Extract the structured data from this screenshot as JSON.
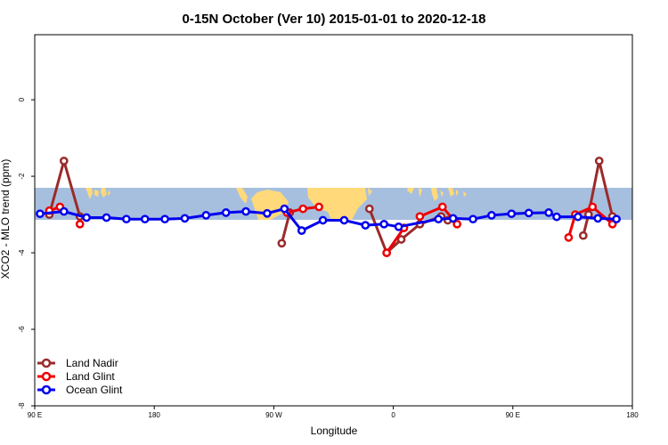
{
  "chart_data": {
    "type": "line",
    "title": "0-15N October (Ver 10)   2015-01-01 to 2020-12-18",
    "xlabel": "Longitude",
    "ylabel": "XCO2 - MLO trend (ppm)",
    "xlim": [
      90,
      540
    ],
    "ylim": [
      -8.0,
      1.7
    ],
    "x_ticks": [
      {
        "value": 90,
        "label": "90 E"
      },
      {
        "value": 180,
        "label": "180"
      },
      {
        "value": 270,
        "label": "90 W"
      },
      {
        "value": 360,
        "label": "0"
      },
      {
        "value": 450,
        "label": "90 E"
      },
      {
        "value": 540,
        "label": "180"
      }
    ],
    "y_ticks": [
      {
        "value": 0,
        "label": "0"
      },
      {
        "value": -2,
        "label": "-2"
      },
      {
        "value": -4,
        "label": "-4"
      },
      {
        "value": -6,
        "label": "-6"
      },
      {
        "value": -8,
        "label": "-8"
      }
    ],
    "map_band": {
      "lon_min": 90,
      "lon_max": 540,
      "ocean_color": "#a7bfde",
      "land_color": "#ffd97a"
    },
    "legend_position": "bottom-left",
    "series": [
      {
        "name": "Land Nadir",
        "color": "#9b2a2a",
        "segments": [
          [
            [
              101,
              -3.0
            ],
            [
              112,
              -1.6
            ],
            [
              124,
              -3.05
            ]
          ],
          [
            [
              276,
              -3.75
            ],
            [
              282,
              -2.95
            ]
          ],
          [
            [
              342,
              -2.85
            ],
            [
              355,
              -4.0
            ],
            [
              366,
              -3.65
            ],
            [
              380,
              -3.25
            ],
            [
              396,
              -3.05
            ],
            [
              401,
              -3.15
            ]
          ],
          [
            [
              503,
              -3.55
            ],
            [
              507,
              -3.0
            ],
            [
              515,
              -1.6
            ],
            [
              525,
              -3.05
            ]
          ]
        ]
      },
      {
        "name": "Land Glint",
        "color": "#ee0000",
        "segments": [
          [
            [
              101,
              -2.9
            ],
            [
              109,
              -2.8
            ]
          ],
          [
            [
              124,
              -3.25
            ]
          ],
          [
            [
              280,
              -2.95
            ],
            [
              292,
              -2.85
            ],
            [
              304,
              -2.8
            ]
          ],
          [
            [
              355,
              -4.0
            ],
            [
              368,
              -3.35
            ]
          ],
          [
            [
              380,
              -3.05
            ],
            [
              397,
              -2.8
            ],
            [
              408,
              -3.25
            ]
          ],
          [
            [
              492,
              -3.6
            ],
            [
              497,
              -3.0
            ],
            [
              510,
              -2.8
            ],
            [
              525,
              -3.25
            ]
          ]
        ]
      },
      {
        "name": "Ocean Glint",
        "color": "#0000ee",
        "segments": [
          [
            [
              94,
              -2.98
            ],
            [
              112,
              -2.92
            ],
            [
              129,
              -3.08
            ],
            [
              144,
              -3.08
            ],
            [
              159,
              -3.12
            ],
            [
              173,
              -3.12
            ],
            [
              188,
              -3.12
            ],
            [
              203,
              -3.1
            ],
            [
              219,
              -3.02
            ],
            [
              234,
              -2.95
            ],
            [
              249,
              -2.92
            ],
            [
              265,
              -2.97
            ],
            [
              278,
              -2.85
            ],
            [
              291,
              -3.42
            ],
            [
              307,
              -3.15
            ],
            [
              323,
              -3.15
            ],
            [
              339,
              -3.28
            ],
            [
              353,
              -3.25
            ],
            [
              364,
              -3.32
            ],
            [
              394,
              -3.12
            ],
            [
              405,
              -3.1
            ],
            [
              420,
              -3.12
            ],
            [
              434,
              -3.02
            ],
            [
              449,
              -2.98
            ],
            [
              462,
              -2.96
            ],
            [
              477,
              -2.95
            ],
            [
              483,
              -3.06
            ],
            [
              499,
              -3.06
            ],
            [
              514,
              -3.1
            ],
            [
              528,
              -3.12
            ]
          ]
        ]
      }
    ]
  }
}
